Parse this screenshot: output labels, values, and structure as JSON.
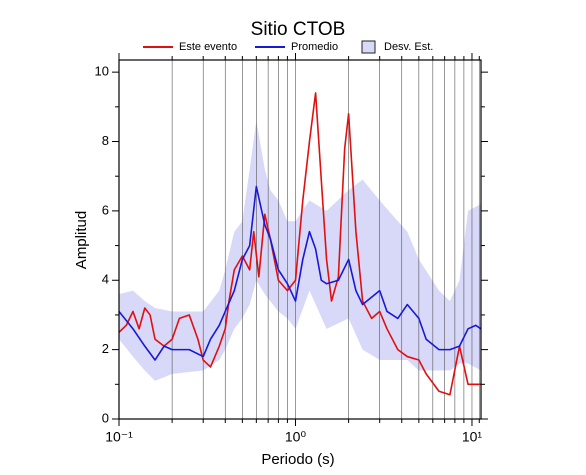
{
  "chart_data": {
    "type": "line",
    "title": "Sitio CTOB",
    "xlabel": "Periodo (s)",
    "ylabel": "Amplitud",
    "xscale": "log",
    "xlim": [
      0.1,
      11.25
    ],
    "ylim": [
      0,
      10.35
    ],
    "xticks": [
      {
        "value": 0.1,
        "label": "10⁻¹"
      },
      {
        "value": 1,
        "label": "10⁰"
      },
      {
        "value": 10,
        "label": "10¹"
      }
    ],
    "xminor": [
      0.2,
      0.3,
      0.4,
      0.5,
      0.6,
      0.7,
      0.8,
      0.9,
      2,
      3,
      4,
      5,
      6,
      7,
      8,
      9,
      11
    ],
    "yticks": [
      0,
      2,
      4,
      6,
      8,
      10
    ],
    "yminor": [
      1,
      3,
      5,
      7,
      9
    ],
    "grid": true,
    "series": [
      {
        "name": "Este evento",
        "color": "#e01010",
        "x": [
          0.1,
          0.11,
          0.12,
          0.13,
          0.14,
          0.15,
          0.16,
          0.18,
          0.2,
          0.22,
          0.25,
          0.28,
          0.3,
          0.33,
          0.37,
          0.4,
          0.42,
          0.45,
          0.5,
          0.55,
          0.58,
          0.62,
          0.67,
          0.72,
          0.8,
          0.9,
          1.0,
          1.1,
          1.2,
          1.3,
          1.4,
          1.5,
          1.6,
          1.75,
          1.9,
          2.0,
          2.2,
          2.4,
          2.7,
          3.0,
          3.3,
          3.8,
          4.3,
          5.0,
          5.5,
          6.5,
          7.5,
          8.5,
          9.5,
          10.5,
          11.25
        ],
        "values": [
          2.5,
          2.7,
          3.1,
          2.6,
          3.2,
          3.0,
          2.3,
          2.1,
          2.3,
          2.9,
          3.0,
          2.3,
          1.7,
          1.5,
          2.1,
          2.6,
          3.4,
          4.3,
          4.7,
          4.3,
          5.4,
          4.1,
          5.9,
          5.2,
          4.0,
          3.7,
          4.0,
          6.3,
          8.0,
          9.4,
          6.9,
          4.6,
          3.4,
          4.1,
          7.8,
          8.8,
          5.4,
          3.4,
          2.9,
          3.1,
          2.6,
          2.0,
          1.8,
          1.7,
          1.3,
          0.8,
          0.7,
          2.1,
          1.0,
          1.0,
          1.0
        ]
      },
      {
        "name": "Promedio",
        "color": "#1818d8",
        "x": [
          0.1,
          0.12,
          0.14,
          0.16,
          0.18,
          0.2,
          0.25,
          0.3,
          0.33,
          0.37,
          0.4,
          0.45,
          0.5,
          0.55,
          0.6,
          0.67,
          0.72,
          0.8,
          0.9,
          1.0,
          1.1,
          1.2,
          1.3,
          1.4,
          1.5,
          1.75,
          2.0,
          2.2,
          2.4,
          3.0,
          3.3,
          3.8,
          4.3,
          5.0,
          5.5,
          6.5,
          7.5,
          8.5,
          9.5,
          10.5,
          11.25
        ],
        "values": [
          3.1,
          2.6,
          2.1,
          1.7,
          2.1,
          2.0,
          2.0,
          1.8,
          2.3,
          2.7,
          3.1,
          3.7,
          4.6,
          5.0,
          6.7,
          5.6,
          5.2,
          4.3,
          3.9,
          3.4,
          4.6,
          5.4,
          4.9,
          4.0,
          3.9,
          4.0,
          4.6,
          3.7,
          3.3,
          3.7,
          3.1,
          2.9,
          3.3,
          2.9,
          2.3,
          2.0,
          2.0,
          2.1,
          2.6,
          2.7,
          2.6
        ]
      },
      {
        "name": "Desv. Est.",
        "color": "#d8d8f8",
        "kind": "band",
        "x": [
          0.1,
          0.12,
          0.14,
          0.16,
          0.2,
          0.3,
          0.37,
          0.4,
          0.45,
          0.5,
          0.55,
          0.6,
          0.67,
          0.72,
          0.8,
          0.9,
          1.0,
          1.2,
          1.5,
          2.0,
          2.4,
          3.0,
          3.8,
          4.3,
          5.0,
          6.5,
          7.5,
          8.5,
          9.5,
          11.25
        ],
        "upper": [
          3.6,
          3.7,
          3.4,
          3.2,
          3.1,
          3.1,
          3.7,
          4.3,
          5.4,
          5.7,
          7.2,
          8.6,
          7.2,
          6.6,
          6.3,
          5.7,
          5.7,
          6.3,
          6.0,
          6.6,
          6.9,
          6.3,
          5.7,
          5.4,
          4.6,
          3.7,
          3.4,
          4.0,
          6.0,
          6.2
        ],
        "lower": [
          2.3,
          1.8,
          1.4,
          1.1,
          1.3,
          1.4,
          1.7,
          2.0,
          2.6,
          2.9,
          3.3,
          4.0,
          3.6,
          3.4,
          3.1,
          2.9,
          2.6,
          3.7,
          2.6,
          2.9,
          2.0,
          1.7,
          1.7,
          1.7,
          1.4,
          1.4,
          1.4,
          1.6,
          1.6,
          1.4
        ]
      }
    ]
  }
}
